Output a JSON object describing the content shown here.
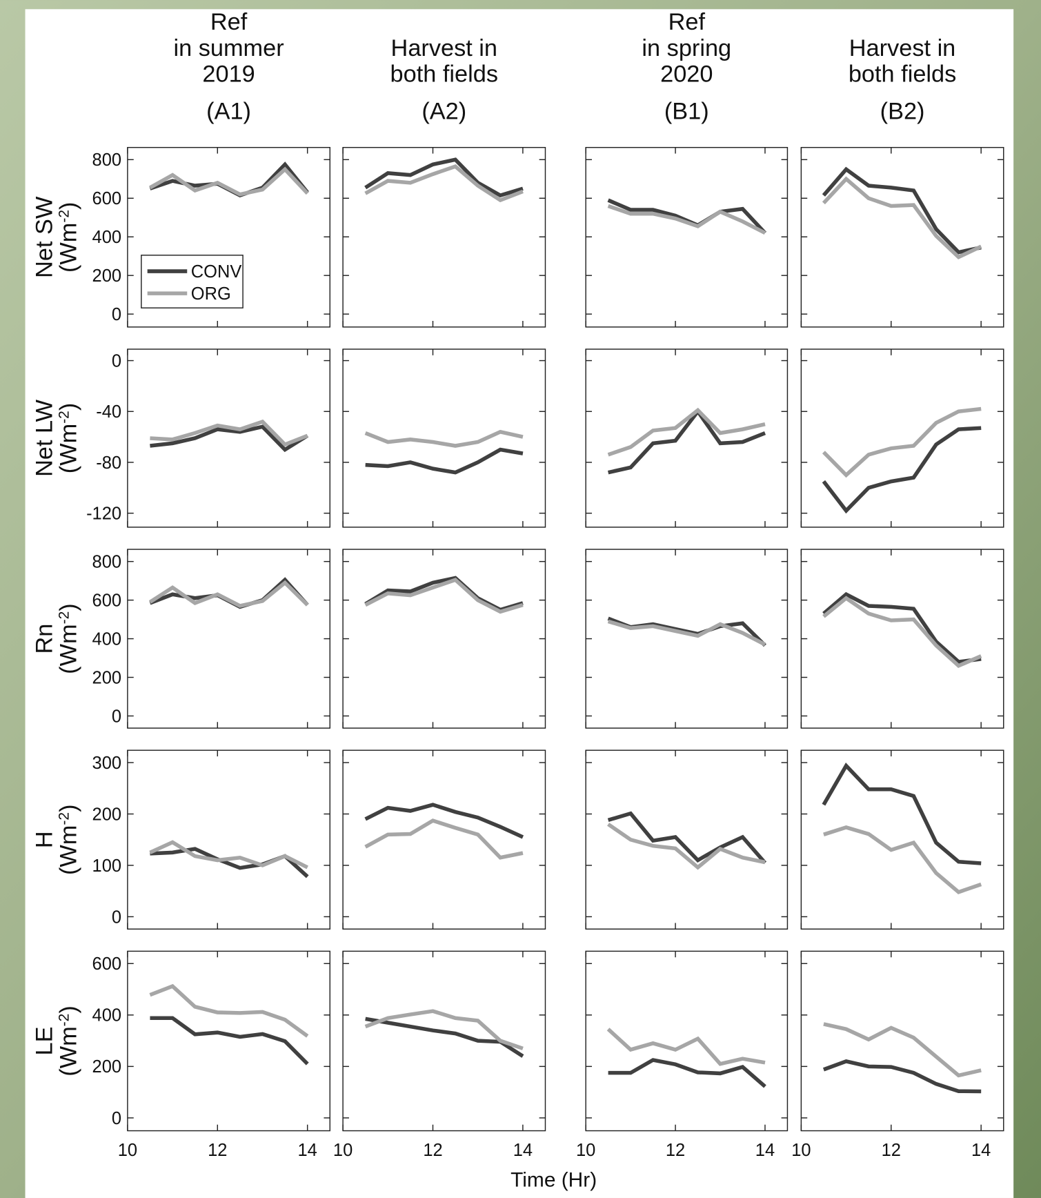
{
  "chart_data": {
    "type": "line",
    "xlabel": "Time (Hr)",
    "x": [
      10.5,
      11,
      11.5,
      12,
      12.5,
      13,
      13.5,
      14
    ],
    "xlim": [
      10,
      14.5
    ],
    "xticks": [
      10,
      12,
      14
    ],
    "series": [
      {
        "name": "CONV",
        "color": "#404040"
      },
      {
        "name": "ORG",
        "color": "#a6a6a6"
      }
    ],
    "columns": [
      {
        "title": [
          "Ref",
          "in summer",
          "2019"
        ],
        "label": "(A1)"
      },
      {
        "title": [
          "Harvest in",
          "both fields"
        ],
        "label": "(A2)"
      },
      {
        "title": [
          "Ref",
          "in spring",
          "2020"
        ],
        "label": "(B1)"
      },
      {
        "title": [
          "Harvest in",
          "both fields"
        ],
        "label": "(B2)"
      }
    ],
    "rows": [
      {
        "ylabel": [
          "Net SW",
          "(Wm",
          "-2",
          ")"
        ],
        "ylim": [
          -67,
          863
        ],
        "yticks": [
          0,
          200,
          400,
          600,
          800
        ],
        "panels": [
          {
            "series": [
              {
                "values": [
                  650,
                  690,
                  665,
                  675,
                  615,
                  655,
                  775,
                  630
                ]
              },
              {
                "values": [
                  655,
                  720,
                  640,
                  680,
                  620,
                  645,
                  750,
                  625
                ]
              }
            ]
          },
          {
            "series": [
              {
                "values": [
                  655,
                  730,
                  720,
                  775,
                  800,
                  680,
                  615,
                  650
                ]
              },
              {
                "values": [
                  625,
                  690,
                  680,
                  725,
                  765,
                  665,
                  590,
                  635
                ]
              }
            ]
          },
          {
            "series": [
              {
                "values": [
                  590,
                  540,
                  540,
                  510,
                  460,
                  530,
                  545,
                  420
                ]
              },
              {
                "values": [
                  560,
                  520,
                  520,
                  495,
                  455,
                  530,
                  480,
                  420
                ]
              }
            ]
          },
          {
            "series": [
              {
                "values": [
                  615,
                  750,
                  665,
                  655,
                  640,
                  440,
                  320,
                  345
                ]
              },
              {
                "values": [
                  575,
                  700,
                  600,
                  560,
                  565,
                  405,
                  295,
                  350
                ]
              }
            ]
          }
        ]
      },
      {
        "ylabel": [
          "Net LW",
          "(Wm",
          "-2",
          ")"
        ],
        "ylim": [
          -131,
          9
        ],
        "yticks": [
          -120,
          -80,
          -40,
          0
        ],
        "panels": [
          {
            "series": [
              {
                "values": [
                  -67,
                  -65,
                  -61,
                  -54,
                  -56,
                  -52,
                  -70,
                  -59
                ]
              },
              {
                "values": [
                  -61,
                  -62,
                  -57,
                  -51,
                  -54,
                  -48,
                  -66,
                  -59
                ]
              }
            ]
          },
          {
            "series": [
              {
                "values": [
                  -82,
                  -83,
                  -80,
                  -85,
                  -88,
                  -80,
                  -70,
                  -73
                ]
              },
              {
                "values": [
                  -57,
                  -64,
                  -62,
                  -64,
                  -67,
                  -64,
                  -56,
                  -60
                ]
              }
            ]
          },
          {
            "series": [
              {
                "values": [
                  -88,
                  -84,
                  -65,
                  -63,
                  -40,
                  -65,
                  -64,
                  -57
                ]
              },
              {
                "values": [
                  -74,
                  -68,
                  -55,
                  -53,
                  -39,
                  -57,
                  -54,
                  -50
                ]
              }
            ]
          },
          {
            "series": [
              {
                "values": [
                  -95,
                  -118,
                  -100,
                  -95,
                  -92,
                  -66,
                  -54,
                  -53
                ]
              },
              {
                "values": [
                  -72,
                  -90,
                  -74,
                  -69,
                  -67,
                  -49,
                  -40,
                  -38
                ]
              }
            ]
          }
        ]
      },
      {
        "ylabel": [
          "Rn",
          "(Wm",
          "-2",
          ")"
        ],
        "ylim": [
          -63,
          863
        ],
        "yticks": [
          0,
          200,
          400,
          600,
          800
        ],
        "panels": [
          {
            "series": [
              {
                "values": [
                  585,
                  630,
                  610,
                  625,
                  565,
                  600,
                  705,
                  575
                ]
              },
              {
                "values": [
                  590,
                  665,
                  585,
                  630,
                  570,
                  595,
                  690,
                  575
                ]
              }
            ]
          },
          {
            "series": [
              {
                "values": [
                  580,
                  650,
                  645,
                  690,
                  715,
                  610,
                  550,
                  585
                ]
              },
              {
                "values": [
                  575,
                  635,
                  625,
                  665,
                  705,
                  600,
                  540,
                  575
                ]
              }
            ]
          },
          {
            "series": [
              {
                "values": [
                  505,
                  460,
                  475,
                  450,
                  425,
                  465,
                  480,
                  365
                ]
              },
              {
                "values": [
                  490,
                  455,
                  465,
                  440,
                  415,
                  475,
                  430,
                  370
                ]
              }
            ]
          },
          {
            "series": [
              {
                "values": [
                  530,
                  630,
                  570,
                  565,
                  555,
                  385,
                  280,
                  295
                ]
              },
              {
                "values": [
                  515,
                  610,
                  530,
                  495,
                  500,
                  365,
                  260,
                  310
                ]
              }
            ]
          }
        ]
      },
      {
        "ylabel": [
          "H",
          "(Wm",
          "-2",
          ")"
        ],
        "ylim": [
          -24,
          324
        ],
        "yticks": [
          0,
          100,
          200,
          300
        ],
        "panels": [
          {
            "series": [
              {
                "values": [
                  123,
                  125,
                  132,
                  112,
                  95,
                  102,
                  118,
                  78
                ]
              },
              {
                "values": [
                  125,
                  145,
                  118,
                  110,
                  115,
                  100,
                  118,
                  96
                ]
              }
            ]
          },
          {
            "series": [
              {
                "values": [
                  190,
                  212,
                  206,
                  218,
                  204,
                  193,
                  175,
                  155
                ]
              },
              {
                "values": [
                  136,
                  160,
                  161,
                  187,
                  173,
                  160,
                  115,
                  124
                ]
              }
            ]
          },
          {
            "series": [
              {
                "values": [
                  188,
                  201,
                  148,
                  155,
                  110,
                  135,
                  155,
                  105
                ]
              },
              {
                "values": [
                  180,
                  150,
                  138,
                  133,
                  96,
                  132,
                  115,
                  106
                ]
              }
            ]
          },
          {
            "series": [
              {
                "values": [
                  218,
                  294,
                  248,
                  248,
                  235,
                  144,
                  107,
                  104
                ]
              },
              {
                "values": [
                  160,
                  174,
                  161,
                  130,
                  144,
                  85,
                  48,
                  63
                ]
              }
            ]
          }
        ]
      },
      {
        "ylabel": [
          "LE",
          "(Wm",
          "-2",
          ")"
        ],
        "ylim": [
          -50,
          648
        ],
        "yticks": [
          0,
          200,
          400,
          600
        ],
        "panels": [
          {
            "series": [
              {
                "values": [
                  388,
                  388,
                  325,
                  332,
                  315,
                  326,
                  298,
                  210
                ]
              },
              {
                "values": [
                  478,
                  512,
                  432,
                  410,
                  408,
                  412,
                  382,
                  318
                ]
              }
            ]
          },
          {
            "series": [
              {
                "values": [
                  385,
                  370,
                  355,
                  340,
                  328,
                  300,
                  296,
                  240
                ]
              },
              {
                "values": [
                  355,
                  388,
                  402,
                  415,
                  388,
                  378,
                  300,
                  270
                ]
              }
            ]
          },
          {
            "series": [
              {
                "values": [
                  175,
                  175,
                  225,
                  208,
                  177,
                  173,
                  198,
                  122
                ]
              },
              {
                "values": [
                  345,
                  265,
                  290,
                  265,
                  308,
                  210,
                  230,
                  215
                ]
              }
            ]
          },
          {
            "series": [
              {
                "values": [
                  188,
                  220,
                  200,
                  198,
                  175,
                  132,
                  104,
                  103
                ]
              },
              {
                "values": [
                  365,
                  345,
                  305,
                  350,
                  312,
                  238,
                  165,
                  185
                ]
              }
            ]
          }
        ]
      }
    ]
  }
}
